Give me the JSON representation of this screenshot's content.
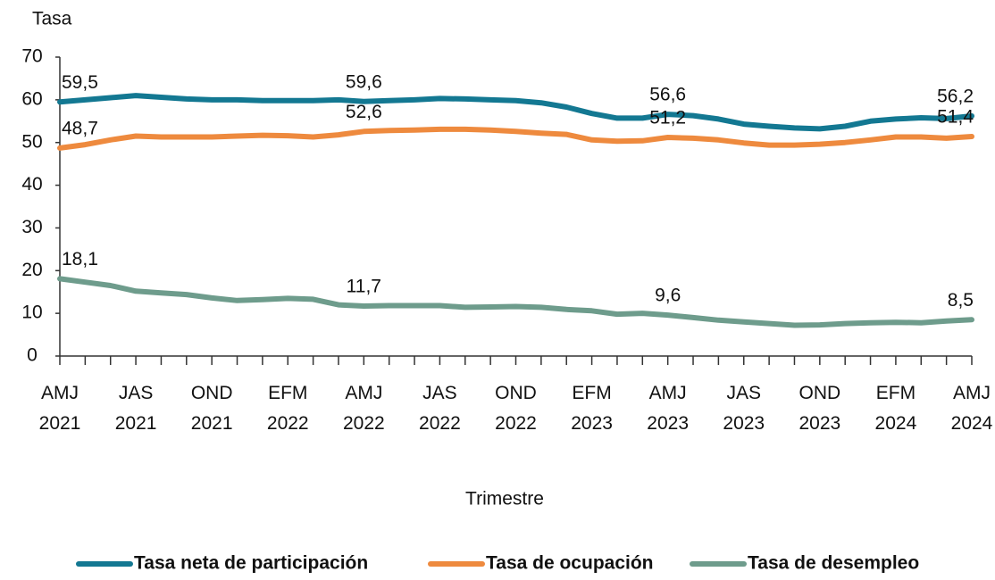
{
  "chart_data": {
    "type": "line",
    "y_label": "Tasa",
    "x_label": "Trimestre",
    "categories": [
      [
        "AMJ",
        "2021"
      ],
      null,
      null,
      [
        "JAS",
        "2021"
      ],
      null,
      null,
      [
        "OND",
        "2021"
      ],
      null,
      null,
      [
        "EFM",
        "2022"
      ],
      null,
      null,
      [
        "AMJ",
        "2022"
      ],
      null,
      null,
      [
        "JAS",
        "2022"
      ],
      null,
      null,
      [
        "OND",
        "2022"
      ],
      null,
      null,
      [
        "EFM",
        "2023"
      ],
      null,
      null,
      [
        "AMJ",
        "2023"
      ],
      null,
      null,
      [
        "JAS",
        "2023"
      ],
      null,
      null,
      [
        "OND",
        "2023"
      ],
      null,
      null,
      [
        "EFM",
        "2024"
      ],
      null,
      null,
      [
        "AMJ",
        "2024"
      ]
    ],
    "series": [
      {
        "name": "Tasa neta de participación",
        "color": "#137892",
        "values": [
          59.5,
          60.0,
          60.5,
          61.0,
          60.6,
          60.2,
          60.0,
          60.0,
          59.8,
          59.8,
          59.8,
          60.0,
          59.6,
          59.8,
          60.0,
          60.3,
          60.2,
          60.0,
          59.8,
          59.3,
          58.3,
          56.8,
          55.7,
          55.7,
          56.6,
          56.3,
          55.5,
          54.3,
          53.8,
          53.4,
          53.2,
          53.8,
          55.0,
          55.5,
          55.8,
          55.6,
          56.2
        ],
        "value_labels": [
          "59,5",
          null,
          null,
          null,
          null,
          null,
          null,
          null,
          null,
          null,
          null,
          null,
          "59,6",
          null,
          null,
          null,
          null,
          null,
          null,
          null,
          null,
          null,
          null,
          null,
          "56,6",
          null,
          null,
          null,
          null,
          null,
          null,
          null,
          null,
          null,
          null,
          null,
          "56,2"
        ]
      },
      {
        "name": "Tasa de ocupación",
        "color": "#ee8a3e",
        "values": [
          48.7,
          49.5,
          50.6,
          51.5,
          51.3,
          51.3,
          51.3,
          51.5,
          51.7,
          51.6,
          51.3,
          51.8,
          52.6,
          52.8,
          52.9,
          53.1,
          53.1,
          52.9,
          52.6,
          52.2,
          51.9,
          50.6,
          50.3,
          50.4,
          51.2,
          51.0,
          50.6,
          49.9,
          49.4,
          49.4,
          49.6,
          50.0,
          50.6,
          51.3,
          51.3,
          51.0,
          51.4
        ],
        "value_labels": [
          "48,7",
          null,
          null,
          null,
          null,
          null,
          null,
          null,
          null,
          null,
          null,
          null,
          "52,6",
          null,
          null,
          null,
          null,
          null,
          null,
          null,
          null,
          null,
          null,
          null,
          "51,2",
          null,
          null,
          null,
          null,
          null,
          null,
          null,
          null,
          null,
          null,
          null,
          "51,4"
        ]
      },
      {
        "name": "Tasa de desempleo",
        "color": "#6e9c8c",
        "values": [
          18.1,
          17.3,
          16.5,
          15.2,
          14.8,
          14.4,
          13.6,
          13.0,
          13.2,
          13.5,
          13.3,
          12.0,
          11.7,
          11.8,
          11.8,
          11.8,
          11.4,
          11.5,
          11.6,
          11.4,
          10.9,
          10.6,
          9.8,
          10.0,
          9.6,
          9.0,
          8.4,
          8.0,
          7.6,
          7.2,
          7.3,
          7.6,
          7.8,
          7.9,
          7.8,
          8.2,
          8.5
        ],
        "value_labels": [
          "18,1",
          null,
          null,
          null,
          null,
          null,
          null,
          null,
          null,
          null,
          null,
          null,
          "11,7",
          null,
          null,
          null,
          null,
          null,
          null,
          null,
          null,
          null,
          null,
          null,
          "9,6",
          null,
          null,
          null,
          null,
          null,
          null,
          null,
          null,
          null,
          null,
          null,
          "8,5"
        ]
      }
    ],
    "ylim": [
      0,
      70
    ],
    "yticks": [
      0,
      10,
      20,
      30,
      40,
      50,
      60,
      70
    ],
    "grid": false,
    "legend": "bottom"
  }
}
